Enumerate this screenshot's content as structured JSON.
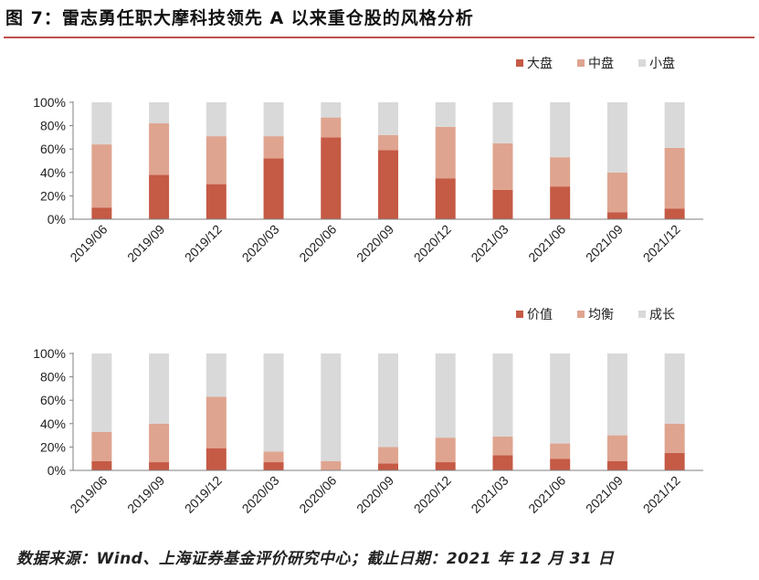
{
  "figure": {
    "title": "图 7：雷志勇任职大摩科技领先 A 以来重仓股的风格分析",
    "footer": "数据来源：Wind、上海证券基金评价研究中心；截止日期：2021 年 12 月 31 日"
  },
  "colors": {
    "dark": "#c55a45",
    "medium": "#dfa48f",
    "light": "#d9d9d9",
    "axis": "#7f7f7f"
  },
  "chart_data": [
    {
      "type": "bar",
      "stacked": true,
      "percent": true,
      "categories": [
        "2019/06",
        "2019/09",
        "2019/12",
        "2020/03",
        "2020/06",
        "2020/09",
        "2020/12",
        "2021/03",
        "2021/06",
        "2021/09",
        "2021/12"
      ],
      "series": [
        {
          "name": "大盘",
          "color": "#c55a45",
          "values": [
            10,
            38,
            30,
            52,
            70,
            59,
            35,
            25,
            28,
            6,
            9
          ]
        },
        {
          "name": "中盘",
          "color": "#dfa48f",
          "values": [
            54,
            44,
            41,
            19,
            17,
            13,
            44,
            40,
            25,
            34,
            52
          ]
        },
        {
          "name": "小盘",
          "color": "#d9d9d9",
          "values": [
            36,
            18,
            29,
            29,
            13,
            28,
            21,
            35,
            47,
            60,
            39
          ]
        }
      ],
      "yticks": [
        "0%",
        "20%",
        "40%",
        "60%",
        "80%",
        "100%"
      ],
      "ylim": [
        0,
        100
      ],
      "legend": "top-right"
    },
    {
      "type": "bar",
      "stacked": true,
      "percent": true,
      "categories": [
        "2019/06",
        "2019/09",
        "2019/12",
        "2020/03",
        "2020/06",
        "2020/09",
        "2020/12",
        "2021/03",
        "2021/06",
        "2021/09",
        "2021/12"
      ],
      "series": [
        {
          "name": "价值",
          "color": "#c55a45",
          "values": [
            8,
            7,
            19,
            7,
            0,
            6,
            7,
            13,
            10,
            8,
            15
          ]
        },
        {
          "name": "均衡",
          "color": "#dfa48f",
          "values": [
            25,
            33,
            44,
            9,
            8,
            14,
            21,
            16,
            13,
            22,
            25
          ]
        },
        {
          "name": "成长",
          "color": "#d9d9d9",
          "values": [
            67,
            60,
            37,
            84,
            92,
            80,
            72,
            71,
            77,
            70,
            60
          ]
        }
      ],
      "yticks": [
        "0%",
        "20%",
        "40%",
        "60%",
        "80%",
        "100%"
      ],
      "ylim": [
        0,
        100
      ],
      "legend": "top-right"
    }
  ]
}
